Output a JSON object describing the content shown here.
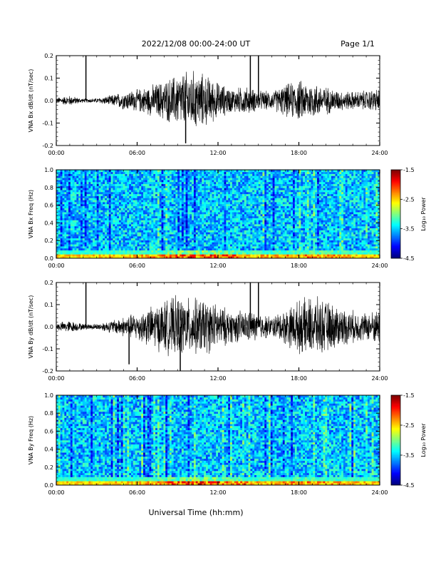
{
  "header": {
    "date_range": "2022/12/08  00:00-24:00 UT",
    "page": "Page 1/1"
  },
  "footer": {
    "xlabel": "Universal Time (hh:mm)"
  },
  "chart_data": [
    {
      "type": "line",
      "ylabel": "VNA Bx dB/dt (nT/sec)",
      "xlim": [
        "00:00",
        "24:00"
      ],
      "ylim": [
        -0.2,
        0.2
      ],
      "xticks": [
        "00:00",
        "06:00",
        "12:00",
        "18:00",
        "24:00"
      ],
      "yticks": [
        "0.2",
        "0.1",
        "0.0",
        "-0.1",
        "-0.2"
      ],
      "envelope": {
        "x_hours": [
          0,
          1,
          2,
          3,
          4,
          5,
          6,
          7,
          8,
          9,
          10,
          11,
          12,
          13,
          14,
          15,
          16,
          17,
          18,
          19,
          20,
          21,
          22,
          23,
          24
        ],
        "amplitude": [
          0.015,
          0.025,
          0.01,
          0.012,
          0.025,
          0.045,
          0.055,
          0.075,
          0.1,
          0.13,
          0.15,
          0.13,
          0.09,
          0.06,
          0.07,
          0.05,
          0.045,
          0.08,
          0.1,
          0.09,
          0.07,
          0.05,
          0.045,
          0.05,
          0.06
        ]
      },
      "spikes": [
        {
          "x_hours": 2.2,
          "value": 0.2
        },
        {
          "x_hours": 14.4,
          "value": 0.2
        },
        {
          "x_hours": 15.0,
          "value": 0.2
        },
        {
          "x_hours": 9.6,
          "value": -0.19
        }
      ]
    },
    {
      "type": "heatmap",
      "ylabel": "VNA Bx Freq (Hz)",
      "colorbar_label": "Log₁₀ Power",
      "xlim": [
        "00:00",
        "24:00"
      ],
      "ylim": [
        0.0,
        1.0
      ],
      "clim": [
        -4.5,
        -1.5
      ],
      "xticks": [
        "00:00",
        "06:00",
        "12:00",
        "18:00",
        "24:00"
      ],
      "yticks": [
        "1.0",
        "0.8",
        "0.6",
        "0.4",
        "0.2",
        "0.0"
      ],
      "cticks": [
        "-1.5",
        "-2.5",
        "-3.5",
        "-4.5"
      ]
    },
    {
      "type": "line",
      "ylabel": "VNA By dB/dt (nT/sec)",
      "xlim": [
        "00:00",
        "24:00"
      ],
      "ylim": [
        -0.2,
        0.2
      ],
      "xticks": [
        "00:00",
        "06:00",
        "12:00",
        "18:00",
        "24:00"
      ],
      "yticks": [
        "0.2",
        "0.1",
        "0.0",
        "-0.1",
        "-0.2"
      ],
      "envelope": {
        "x_hours": [
          0,
          1,
          2,
          3,
          4,
          5,
          6,
          7,
          8,
          9,
          10,
          11,
          12,
          13,
          14,
          15,
          16,
          17,
          18,
          19,
          20,
          21,
          22,
          23,
          24
        ],
        "amplitude": [
          0.02,
          0.03,
          0.015,
          0.015,
          0.03,
          0.05,
          0.07,
          0.1,
          0.13,
          0.15,
          0.14,
          0.14,
          0.11,
          0.08,
          0.08,
          0.07,
          0.05,
          0.09,
          0.13,
          0.15,
          0.13,
          0.1,
          0.08,
          0.07,
          0.09
        ]
      },
      "spikes": [
        {
          "x_hours": 2.2,
          "value": 0.2
        },
        {
          "x_hours": 14.4,
          "value": 0.2
        },
        {
          "x_hours": 15.0,
          "value": 0.2
        },
        {
          "x_hours": 5.4,
          "value": -0.17
        },
        {
          "x_hours": 9.2,
          "value": -0.2
        }
      ]
    },
    {
      "type": "heatmap",
      "ylabel": "VNA By Freq (Hz)",
      "colorbar_label": "Log₁₀ Power",
      "xlim": [
        "00:00",
        "24:00"
      ],
      "ylim": [
        0.0,
        1.0
      ],
      "clim": [
        -4.5,
        -1.5
      ],
      "xticks": [
        "00:00",
        "06:00",
        "12:00",
        "18:00",
        "24:00"
      ],
      "yticks": [
        "1.0",
        "0.8",
        "0.6",
        "0.4",
        "0.2",
        "0.0"
      ],
      "cticks": [
        "-1.5",
        "-2.5",
        "-3.5",
        "-4.5"
      ]
    }
  ]
}
